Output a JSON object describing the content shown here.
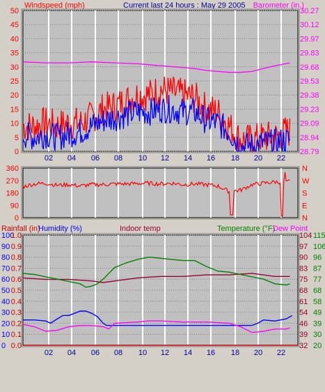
{
  "header": {
    "windspeed_label": "Windspeed (mph)",
    "title": "Current last 24 hours : May 29 2005",
    "barometer_label": "Barometer (in.)"
  },
  "legend": {
    "rainfall": "Rainfall (in)",
    "humidity": "Humidity (%)",
    "indoor_temp": "Indoor temp",
    "temperature": "Temperature (°F)",
    "dew_point": "Dew Point"
  },
  "colors": {
    "background": "#d4d0c8",
    "plot_bg": "#c0c0c0",
    "grid": "#ffffff",
    "wind": "#ff0000",
    "gust": "#0000ff",
    "barometer": "#ff00ff",
    "direction": "#ff0000",
    "humidity": "#0000ff",
    "indoor": "#990033",
    "temperature": "#008000",
    "dewpoint": "#ff00ff",
    "rainfall": "#cc0000",
    "title": "#000099"
  },
  "chart_data": [
    {
      "type": "line",
      "name": "wind",
      "x_ticks": [
        "02",
        "04",
        "06",
        "08",
        "10",
        "12",
        "14",
        "16",
        "18",
        "20",
        "22"
      ],
      "xlim": [
        0,
        24
      ],
      "ylim": [
        0,
        50
      ],
      "y_ticks": [
        "0",
        "5",
        "10",
        "15",
        "20",
        "25",
        "30",
        "35",
        "40",
        "45",
        "50"
      ],
      "y2_ticks": [
        "28.79",
        "28.94",
        "29.09",
        "29.23",
        "29.38",
        "29.53",
        "29.68",
        "29.83",
        "29.97",
        "30.12",
        "30.27"
      ],
      "y2lim": [
        28.79,
        30.27
      ],
      "series": [
        {
          "name": "Windspeed (mph)",
          "color": "#ff0000",
          "x": [
            0,
            1,
            2,
            3,
            4,
            5,
            6,
            7,
            8,
            9,
            10,
            11,
            12,
            13,
            14,
            15,
            16,
            17,
            18,
            19,
            20,
            21,
            22,
            23
          ],
          "y": [
            9,
            9,
            10,
            9,
            10,
            10,
            12,
            15,
            16,
            18,
            20,
            20,
            22,
            21,
            20,
            19,
            15,
            14,
            9,
            4,
            4,
            5,
            5,
            7
          ]
        },
        {
          "name": "Gust",
          "color": "#0000ff",
          "x": [
            0,
            1,
            2,
            3,
            4,
            5,
            6,
            7,
            8,
            9,
            10,
            11,
            12,
            13,
            14,
            15,
            16,
            17,
            18,
            19,
            20,
            21,
            22,
            23
          ],
          "y": [
            6,
            5,
            6,
            5,
            6,
            7,
            9,
            11,
            12,
            13,
            14,
            14,
            15,
            15,
            14,
            14,
            11,
            10,
            7,
            2,
            2,
            3,
            3,
            4
          ]
        },
        {
          "name": "Barometer (in.)",
          "color": "#ff00ff",
          "axis": "right",
          "x": [
            0,
            2,
            4,
            6,
            8,
            10,
            11,
            12,
            13,
            14,
            15,
            16,
            17,
            18,
            19,
            20,
            21,
            22,
            23.3
          ],
          "y": [
            29.73,
            29.72,
            29.72,
            29.73,
            29.72,
            29.71,
            29.7,
            29.69,
            29.68,
            29.67,
            29.66,
            29.64,
            29.63,
            29.62,
            29.62,
            29.63,
            29.66,
            29.69,
            29.72
          ]
        }
      ]
    },
    {
      "type": "scatter",
      "name": "wind_direction",
      "xlim": [
        0,
        24
      ],
      "ylim": [
        0,
        360
      ],
      "y_ticks": [
        "0",
        "90",
        "180",
        "270",
        "360"
      ],
      "y2_ticks": [
        "N",
        "W",
        "S",
        "E",
        "N"
      ],
      "series": [
        {
          "name": "Direction",
          "color": "#ff0000",
          "x": [
            0,
            1,
            2,
            3,
            4,
            5,
            6,
            7,
            8,
            9,
            10,
            11,
            12,
            13,
            14,
            15,
            16,
            17,
            18,
            19,
            20,
            21,
            22,
            23,
            23.3
          ],
          "y": [
            225,
            245,
            250,
            235,
            240,
            230,
            240,
            240,
            245,
            245,
            248,
            250,
            245,
            250,
            240,
            245,
            240,
            230,
            190,
            200,
            240,
            250,
            260,
            255,
            265
          ]
        }
      ]
    },
    {
      "type": "line",
      "name": "temperature_humidity",
      "xlim": [
        0,
        24
      ],
      "rain_ticks": [
        "0.0",
        "0.1",
        "0.2",
        "0.3",
        "0.4",
        "0.5",
        "0.6",
        "0.7",
        "0.8",
        "0.9",
        "1.0"
      ],
      "humidity_ticks": [
        "0",
        "10",
        "20",
        "30",
        "40",
        "50",
        "60",
        "70",
        "80",
        "90",
        "100"
      ],
      "ylim": [
        0,
        100
      ],
      "indoor_ticks": [
        "32",
        "39",
        "46",
        "54",
        "61",
        "68",
        "75",
        "83",
        "90",
        "97",
        "104"
      ],
      "temp_ticks": [
        "20",
        "30",
        "39",
        "49",
        "58",
        "68",
        "77",
        "87",
        "96",
        "106",
        "115"
      ],
      "series": [
        {
          "name": "Rainfall (in)",
          "color": "#cc0000",
          "axis": "humidity_pct",
          "x": [
            0,
            24
          ],
          "y": [
            0,
            0
          ]
        },
        {
          "name": "Humidity (%)",
          "color": "#0000ff",
          "axis": "humidity_pct",
          "x": [
            0,
            1,
            2,
            2.4,
            3,
            3.5,
            4,
            4.5,
            5,
            5.5,
            6,
            6.5,
            7,
            7.3,
            8,
            10,
            12,
            14,
            16,
            18,
            20,
            20.5,
            21,
            22,
            23,
            23.5
          ],
          "y": [
            23,
            23,
            22,
            20,
            24,
            27,
            27,
            29,
            31,
            31,
            29,
            26,
            20,
            18,
            18,
            18,
            18,
            18,
            18,
            18,
            18,
            20,
            23,
            22,
            24,
            27
          ]
        },
        {
          "name": "Indoor temp",
          "color": "#990033",
          "axis": "indoor_f",
          "x": [
            0,
            2,
            4,
            6,
            7,
            8,
            10,
            12,
            14,
            16,
            18,
            20,
            22,
            23.3
          ],
          "y": [
            76,
            75,
            75,
            74,
            73,
            74,
            76,
            77,
            77,
            78,
            78,
            79,
            77,
            77
          ]
        },
        {
          "name": "Temperature (°F)",
          "color": "#008000",
          "axis": "temp_f",
          "x": [
            0,
            1,
            2,
            3,
            4,
            5,
            5.5,
            6,
            6.5,
            7,
            8,
            9,
            10,
            11,
            12,
            13,
            14,
            15,
            16,
            17,
            18,
            19,
            20,
            21,
            22,
            23,
            23.3
          ],
          "y": [
            82,
            81,
            79,
            77,
            75,
            73,
            70,
            71,
            73,
            77,
            87,
            91,
            94,
            96,
            95,
            94,
            93,
            93,
            88,
            84,
            83,
            81,
            79,
            77,
            73,
            72,
            73
          ]
        },
        {
          "name": "Dew Point",
          "color": "#ff00ff",
          "axis": "temp_f",
          "x": [
            0,
            1,
            2,
            3,
            4,
            5,
            6,
            7,
            7.5,
            8,
            10,
            11,
            12,
            14,
            16,
            18,
            19,
            20,
            21,
            22,
            23,
            23.3
          ],
          "y": [
            38,
            36,
            32,
            33,
            36,
            37,
            37,
            36,
            34,
            39,
            40,
            41,
            41,
            40,
            40,
            39,
            36,
            31,
            32,
            34,
            34,
            35
          ]
        }
      ]
    }
  ]
}
